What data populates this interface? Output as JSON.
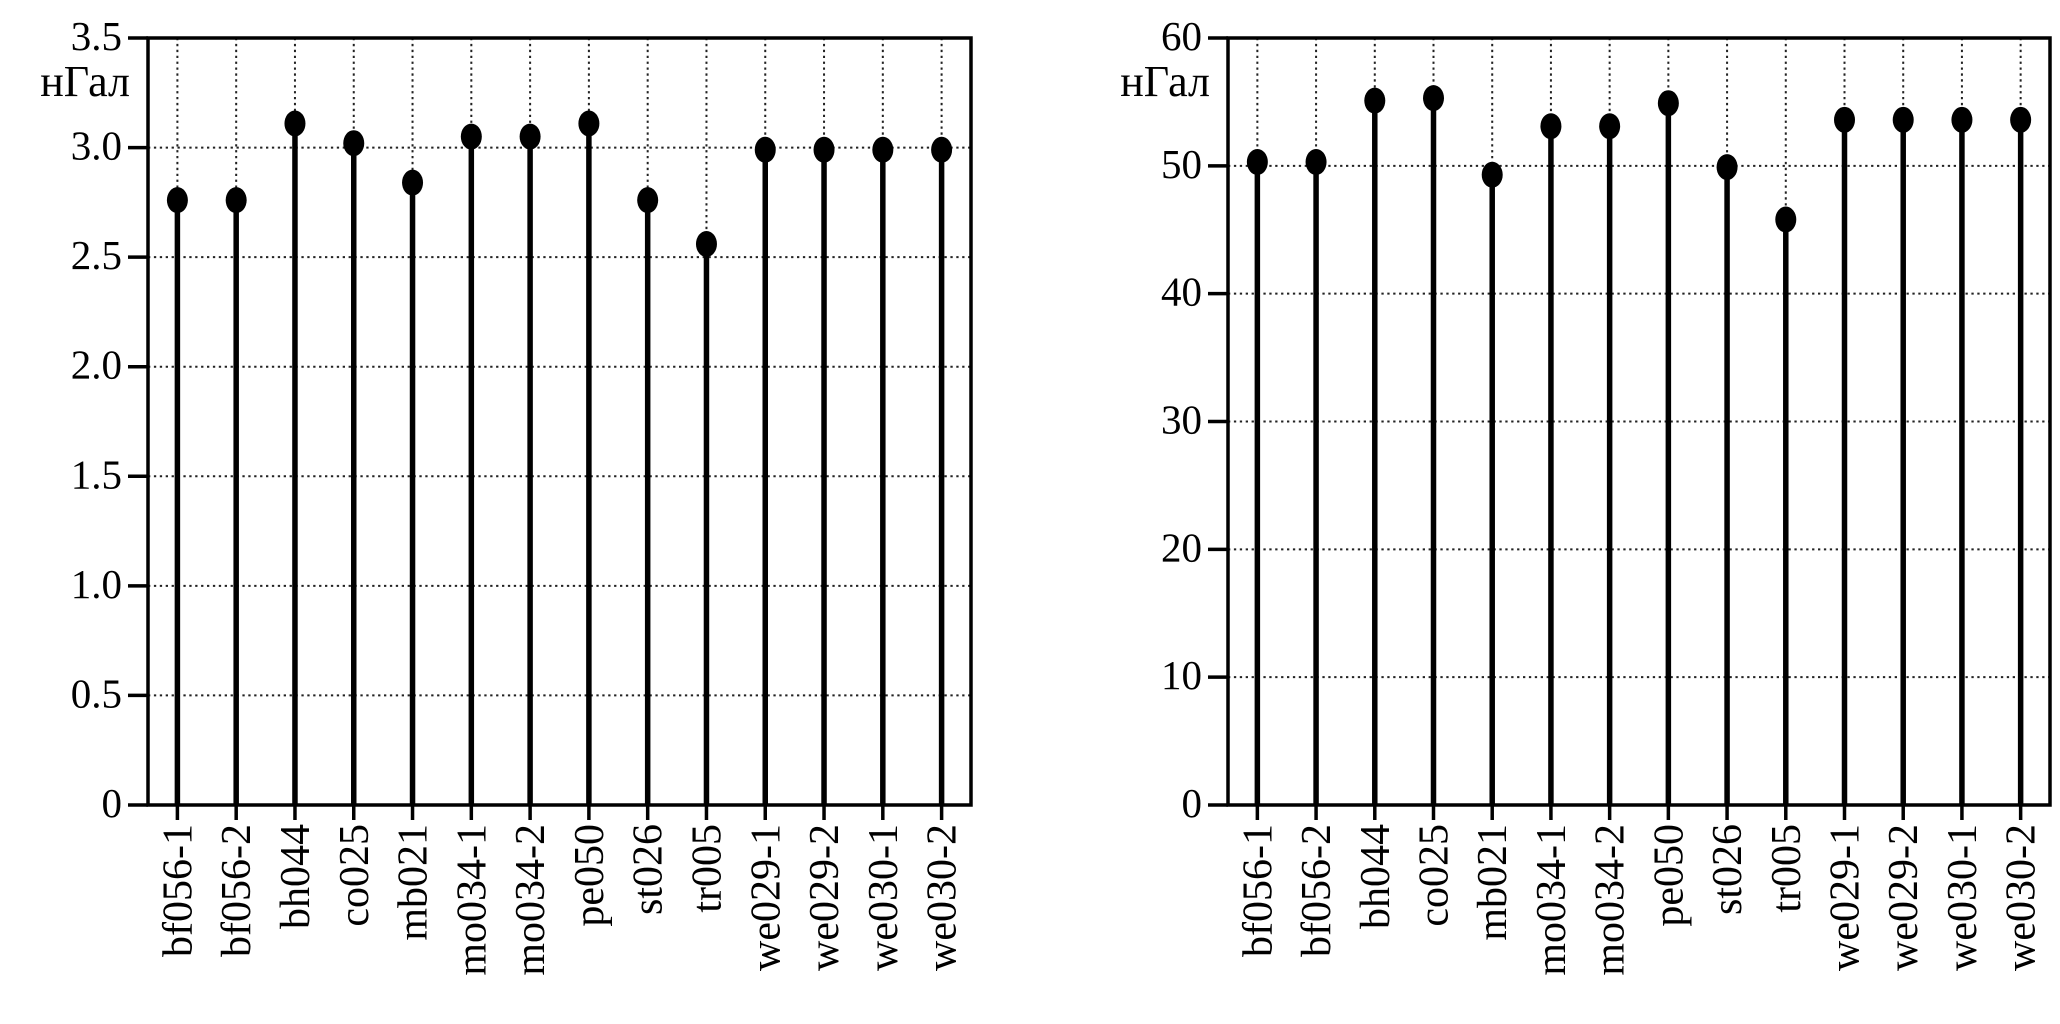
{
  "figure": {
    "background": "#ffffff",
    "ink_color": "#000000",
    "grid_color": "#222222"
  },
  "chart_data": [
    {
      "type": "bar",
      "style": "stem-lollipop",
      "name": "left",
      "title": "",
      "xlabel": "",
      "ylabel": "нГал",
      "categories": [
        "bf056-1",
        "bf056-2",
        "bh044",
        "co025",
        "mb021",
        "mo034-1",
        "mo034-2",
        "pe050",
        "st026",
        "tr005",
        "we029-1",
        "we029-2",
        "we030-1",
        "we030-2"
      ],
      "values": [
        2.76,
        2.76,
        3.11,
        3.02,
        2.84,
        3.05,
        3.05,
        3.11,
        2.76,
        2.56,
        2.99,
        2.99,
        2.99,
        2.99
      ],
      "ylim": [
        0,
        3.5
      ],
      "yticks": [
        0,
        0.5,
        1.0,
        1.5,
        2.0,
        2.5,
        3.0,
        3.5
      ],
      "ytick_labels": [
        "0",
        "0.5",
        "1.0",
        "1.5",
        "2.0",
        "2.5",
        "3.0",
        "3.5"
      ],
      "grid": true,
      "legend": null
    },
    {
      "type": "bar",
      "style": "stem-lollipop",
      "name": "right",
      "title": "",
      "xlabel": "",
      "ylabel": "нГал",
      "categories": [
        "bf056-1",
        "bf056-2",
        "bh044",
        "co025",
        "mb021",
        "mo034-1",
        "mo034-2",
        "pe050",
        "st026",
        "tr005",
        "we029-1",
        "we029-2",
        "we030-1",
        "we030-2"
      ],
      "values": [
        50.3,
        50.3,
        55.1,
        55.3,
        49.3,
        53.1,
        53.1,
        54.9,
        49.9,
        45.8,
        53.6,
        53.6,
        53.6,
        53.6
      ],
      "ylim": [
        0,
        60
      ],
      "yticks": [
        0,
        10,
        20,
        30,
        40,
        50,
        60
      ],
      "ytick_labels": [
        "0",
        "10",
        "20",
        "30",
        "40",
        "50",
        "60"
      ],
      "grid": true,
      "legend": null
    }
  ]
}
